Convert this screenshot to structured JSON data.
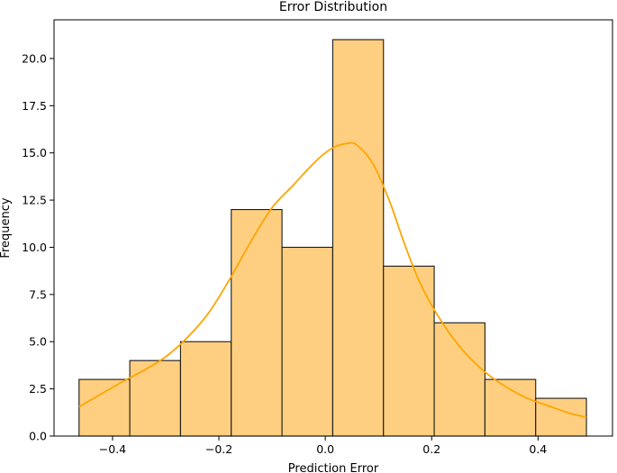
{
  "chart_data": {
    "type": "bar",
    "subtype": "histogram-with-kde",
    "title": "Error Distribution",
    "xlabel": "Prediction Error",
    "ylabel": "Frequency",
    "xlim": [
      -0.51,
      0.54
    ],
    "ylim": [
      0,
      22.05
    ],
    "bins": [
      {
        "x0": -0.463,
        "x1": -0.3676,
        "count": 3
      },
      {
        "x0": -0.3676,
        "x1": -0.2722,
        "count": 4
      },
      {
        "x0": -0.2722,
        "x1": -0.1768,
        "count": 5
      },
      {
        "x0": -0.1768,
        "x1": -0.0814,
        "count": 12
      },
      {
        "x0": -0.0814,
        "x1": 0.014,
        "count": 10
      },
      {
        "x0": 0.014,
        "x1": 0.1094,
        "count": 21
      },
      {
        "x0": 0.1094,
        "x1": 0.2048,
        "count": 9
      },
      {
        "x0": 0.2048,
        "x1": 0.3002,
        "count": 6
      },
      {
        "x0": 0.3002,
        "x1": 0.3956,
        "count": 3
      },
      {
        "x0": 0.3956,
        "x1": 0.491,
        "count": 2
      }
    ],
    "kde": {
      "x": [
        -0.463,
        -0.42,
        -0.38,
        -0.34,
        -0.3,
        -0.26,
        -0.22,
        -0.18,
        -0.14,
        -0.1,
        -0.06,
        -0.02,
        0.01,
        0.04,
        0.06,
        0.09,
        0.12,
        0.15,
        0.18,
        0.22,
        0.26,
        0.3,
        0.34,
        0.38,
        0.42,
        0.46,
        0.491
      ],
      "y": [
        1.55,
        2.25,
        2.9,
        3.5,
        4.2,
        5.2,
        6.5,
        8.3,
        10.3,
        12.1,
        13.3,
        14.5,
        15.2,
        15.5,
        15.4,
        14.4,
        12.5,
        10.1,
        8.0,
        6.0,
        4.5,
        3.4,
        2.6,
        2.0,
        1.6,
        1.2,
        1.0
      ]
    },
    "x_ticks": [
      {
        "value": -0.4,
        "label": "−0.4"
      },
      {
        "value": -0.2,
        "label": "−0.2"
      },
      {
        "value": 0.0,
        "label": "0.0"
      },
      {
        "value": 0.2,
        "label": "0.2"
      },
      {
        "value": 0.4,
        "label": "0.4"
      }
    ],
    "y_ticks": [
      {
        "value": 0,
        "label": "0.0"
      },
      {
        "value": 2.5,
        "label": "2.5"
      },
      {
        "value": 5,
        "label": "5.0"
      },
      {
        "value": 7.5,
        "label": "7.5"
      },
      {
        "value": 10,
        "label": "10.0"
      },
      {
        "value": 12.5,
        "label": "12.5"
      },
      {
        "value": 15,
        "label": "15.0"
      },
      {
        "value": 17.5,
        "label": "17.5"
      },
      {
        "value": 20,
        "label": "20.0"
      }
    ],
    "grid": false,
    "colors": {
      "bar_fill": "#fecf80",
      "bar_edge": "#1a1a1a",
      "kde_line": "#ffa500",
      "axis": "#000000"
    }
  }
}
